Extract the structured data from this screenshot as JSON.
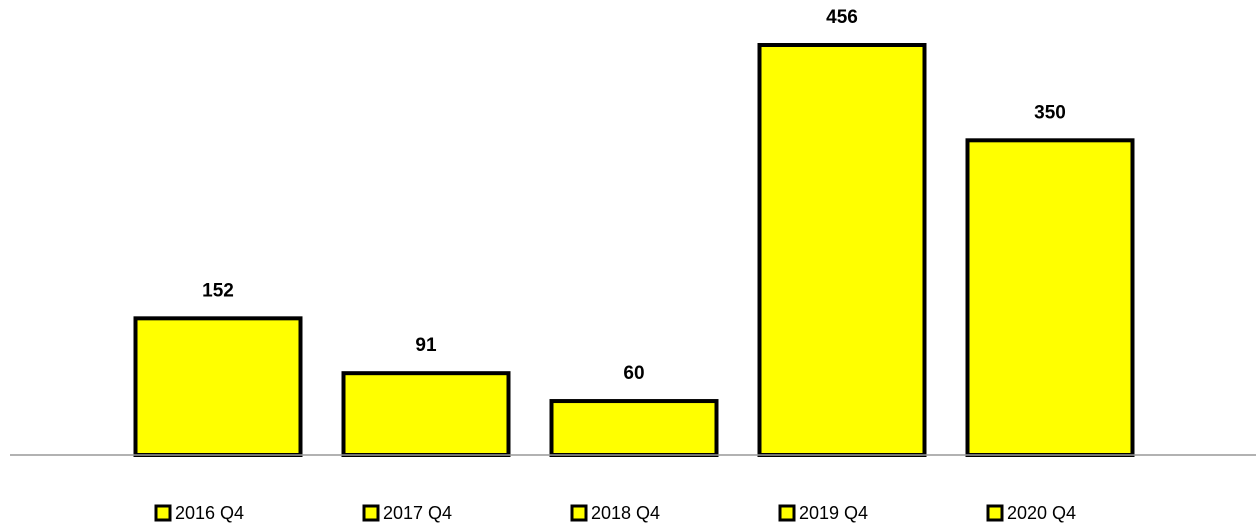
{
  "chart_data": {
    "type": "bar",
    "categories": [
      "2016 Q4",
      "2017 Q4",
      "2018 Q4",
      "2019 Q4",
      "2020 Q4"
    ],
    "values": [
      152,
      91,
      60,
      456,
      350
    ],
    "color": "#ffff00"
  }
}
